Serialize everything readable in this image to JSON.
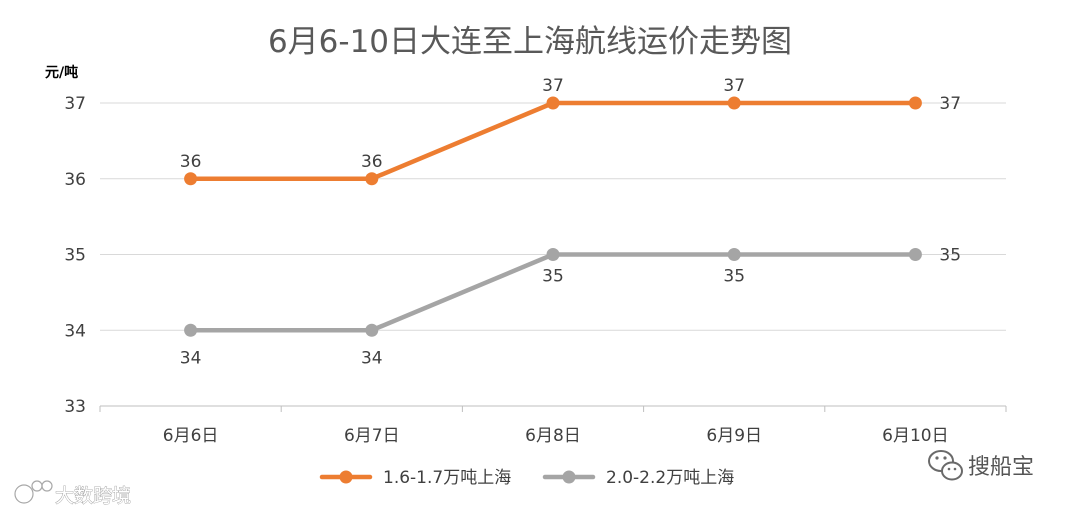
{
  "chart_data": {
    "type": "line",
    "title": "6月6-10日大连至上海航线运价走势图",
    "ylabel": "元/吨",
    "xlabel": "",
    "ylim": [
      33,
      37
    ],
    "yticks": [
      "33",
      "34",
      "35",
      "36",
      "37"
    ],
    "categories": [
      "6月6日",
      "6月7日",
      "6月8日",
      "6月9日",
      "6月10日"
    ],
    "grid": true,
    "legend_position": "bottom",
    "series": [
      {
        "name": "1.6-1.7万吨上海",
        "color": "#ED7D31",
        "values": [
          36,
          36,
          37,
          37,
          37
        ],
        "labels": [
          "36",
          "36",
          "37",
          "37",
          "37"
        ]
      },
      {
        "name": "2.0-2.2万吨上海",
        "color": "#A5A5A5",
        "values": [
          34,
          34,
          35,
          35,
          35
        ],
        "labels": [
          "34",
          "34",
          "35",
          "35",
          "35"
        ]
      }
    ]
  },
  "watermarks": {
    "left": "大数跨境",
    "right": "搜船宝"
  },
  "colors": {
    "grid": "#D9D9D9",
    "axis": "#BFBFBF",
    "text": "#404040",
    "title": "#595959"
  }
}
